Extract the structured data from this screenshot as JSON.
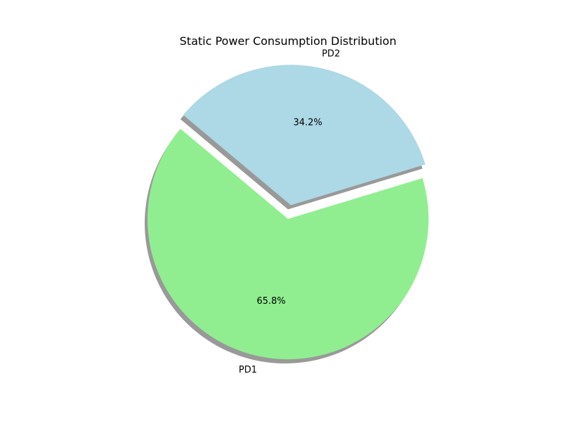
{
  "chart_data": {
    "type": "pie",
    "title": "Static Power Consumption Distribution",
    "slices": [
      {
        "label": "PD1",
        "value": 65.8,
        "pct_label": "65.8%",
        "color": "#90ee90",
        "exploded": false
      },
      {
        "label": "PD2",
        "value": 34.2,
        "pct_label": "34.2%",
        "color": "#add8e6",
        "exploded": true
      }
    ],
    "shadow": true,
    "shadow_color": "#999999",
    "legend": "none"
  }
}
